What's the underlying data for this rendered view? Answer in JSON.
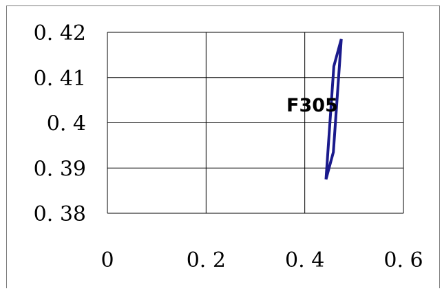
{
  "chart_data": {
    "type": "line",
    "title": "",
    "xlabel": "",
    "ylabel": "",
    "xlim": [
      0,
      0.6
    ],
    "ylim": [
      0.38,
      0.42
    ],
    "x_ticks": [
      {
        "value": 0,
        "label": "0"
      },
      {
        "value": 0.2,
        "label": "0. 2"
      },
      {
        "value": 0.4,
        "label": "0. 4"
      },
      {
        "value": 0.6,
        "label": "0. 6"
      }
    ],
    "y_ticks": [
      {
        "value": 0.42,
        "label": "0. 42"
      },
      {
        "value": 0.41,
        "label": "0. 41"
      },
      {
        "value": 0.4,
        "label": "0. 4"
      },
      {
        "value": 0.39,
        "label": "0. 39"
      },
      {
        "value": 0.38,
        "label": "0. 38"
      }
    ],
    "grid": true,
    "series": [
      {
        "color": "#1a1a8c",
        "points": [
          {
            "x": 0.443,
            "y": 0.3875
          },
          {
            "x": 0.458,
            "y": 0.3935
          },
          {
            "x": 0.474,
            "y": 0.4185
          },
          {
            "x": 0.459,
            "y": 0.4125
          },
          {
            "x": 0.443,
            "y": 0.3875
          }
        ]
      }
    ],
    "annotations": [
      {
        "text": "F305",
        "x": 0.415,
        "y": 0.4025
      }
    ]
  }
}
